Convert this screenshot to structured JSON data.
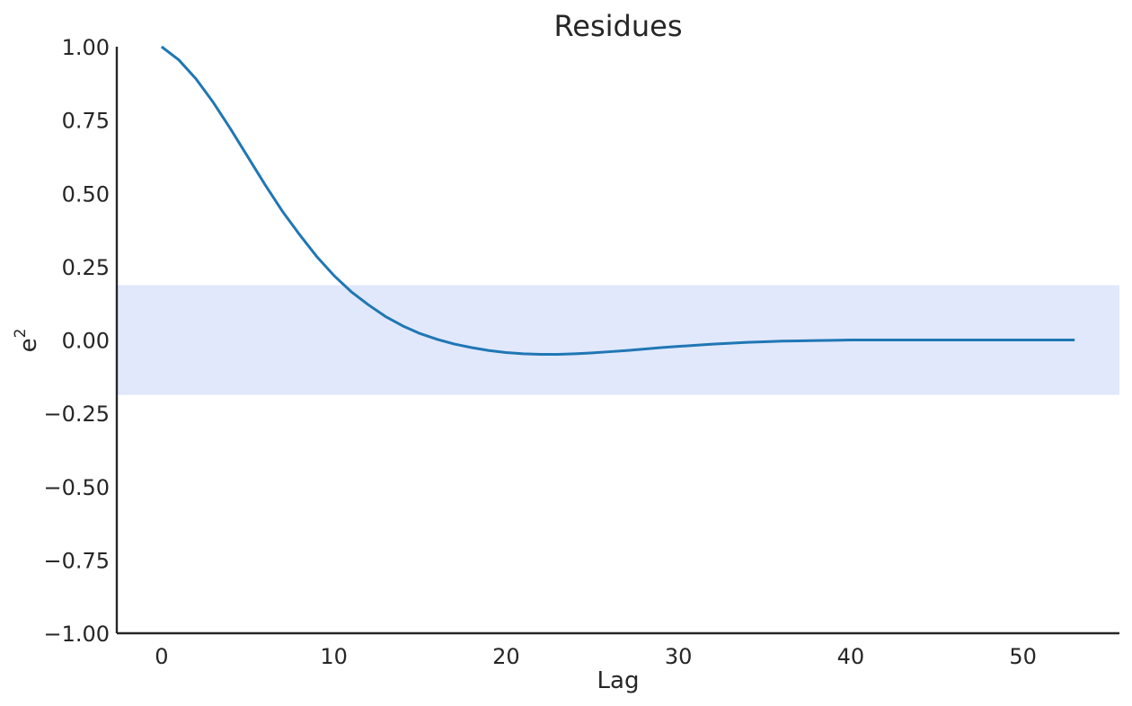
{
  "chart_data": {
    "type": "line",
    "title": "Residues",
    "xlabel": "Lag",
    "ylabel": "e",
    "ylabel_superscript": "2",
    "xlim": [
      -2.6,
      55.6
    ],
    "ylim": [
      -1.0,
      1.0
    ],
    "xticks": [
      0,
      10,
      20,
      30,
      40,
      50
    ],
    "xtick_labels": [
      "0",
      "10",
      "20",
      "30",
      "40",
      "50"
    ],
    "yticks": [
      1.0,
      0.75,
      0.5,
      0.25,
      0.0,
      -0.25,
      -0.5,
      -0.75,
      -1.0
    ],
    "ytick_labels": [
      "1.00",
      "0.75",
      "0.50",
      "0.25",
      "0.00",
      "−0.25",
      "−0.50",
      "−0.75",
      "−1.00"
    ],
    "grid": false,
    "confidence_band": {
      "lower": -0.187,
      "upper": 0.187,
      "color": "#e1e8fb"
    },
    "series": [
      {
        "color": "#1f77b4",
        "x": [
          0,
          1,
          2,
          3,
          4,
          5,
          6,
          7,
          8,
          9,
          10,
          11,
          12,
          13,
          14,
          15,
          16,
          17,
          18,
          19,
          20,
          21,
          22,
          23,
          24,
          25,
          26,
          27,
          28,
          29,
          30,
          31,
          32,
          33,
          34,
          35,
          36,
          37,
          38,
          39,
          40,
          41,
          42,
          43,
          44,
          45,
          46,
          47,
          48,
          49,
          50,
          51,
          52,
          53
        ],
        "y": [
          1.0,
          0.955,
          0.89,
          0.81,
          0.72,
          0.625,
          0.53,
          0.44,
          0.36,
          0.285,
          0.22,
          0.165,
          0.12,
          0.08,
          0.048,
          0.022,
          0.002,
          -0.014,
          -0.026,
          -0.036,
          -0.043,
          -0.047,
          -0.049,
          -0.049,
          -0.047,
          -0.044,
          -0.04,
          -0.036,
          -0.031,
          -0.026,
          -0.022,
          -0.018,
          -0.014,
          -0.011,
          -0.008,
          -0.006,
          -0.004,
          -0.003,
          -0.002,
          -0.001,
          0.0,
          0.0,
          0.0,
          0.0,
          0.0,
          0.0,
          0.0,
          0.0,
          0.0,
          0.0,
          0.0,
          0.0,
          0.0,
          0.0
        ]
      }
    ]
  }
}
